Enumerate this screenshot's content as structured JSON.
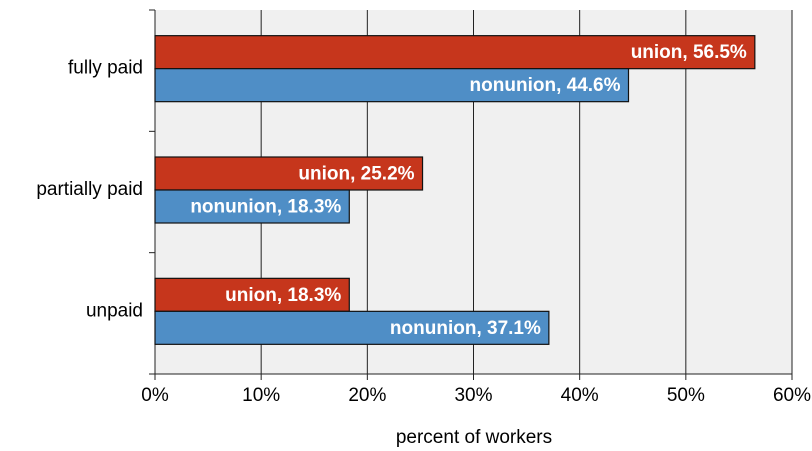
{
  "chart_data": {
    "type": "hbar",
    "xlabel": "percent of workers",
    "categories": [
      "fully paid",
      "partially paid",
      "unpaid"
    ],
    "series": [
      {
        "name": "union",
        "color": "#c6361c",
        "values": [
          56.5,
          25.2,
          18.3
        ],
        "value_labels": [
          "union, 56.5%",
          "union, 25.2%",
          "union, 18.3%"
        ]
      },
      {
        "name": "nonunion",
        "color": "#4f8ec6",
        "values": [
          44.6,
          18.3,
          37.1
        ],
        "value_labels": [
          "nonunion, 44.6%",
          "nonunion, 18.3%",
          "nonunion, 37.1%"
        ]
      }
    ],
    "xlim": [
      0,
      60
    ],
    "xticks": [
      {
        "value": 0,
        "label": "0%"
      },
      {
        "value": 10,
        "label": "10%"
      },
      {
        "value": 20,
        "label": "20%"
      },
      {
        "value": 30,
        "label": "30%"
      },
      {
        "value": 40,
        "label": "40%"
      },
      {
        "value": 50,
        "label": "50%"
      },
      {
        "value": 60,
        "label": "60%"
      }
    ],
    "grid": true
  }
}
